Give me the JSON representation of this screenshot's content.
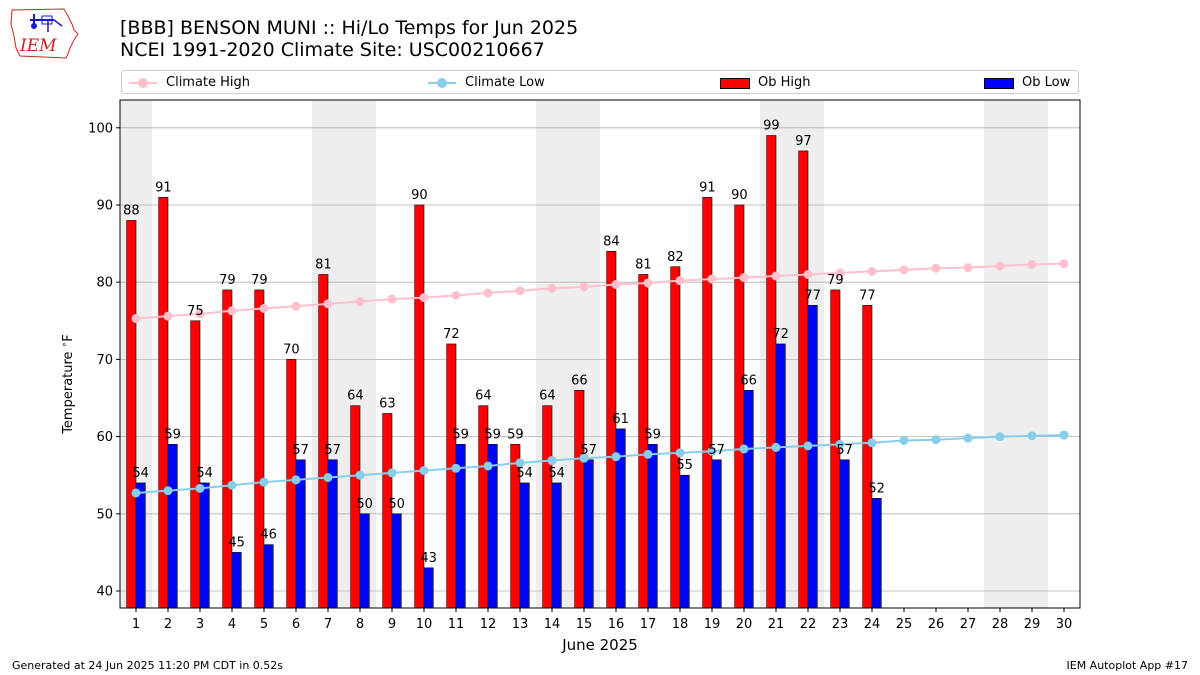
{
  "header": {
    "title_line1": "[BBB] BENSON MUNI :: Hi/Lo Temps for Jun 2025",
    "title_line2": "NCEI 1991-2020 Climate Site: USC00210667"
  },
  "logo": {
    "text": "IEM",
    "icon": "iowa-state-outline-logo"
  },
  "legend": {
    "placement": "top",
    "items": [
      {
        "label": "Climate High",
        "kind": "line",
        "color": "#ffc0cb"
      },
      {
        "label": "Climate Low",
        "kind": "line",
        "color": "#87ceeb"
      },
      {
        "label": "Ob High",
        "kind": "bar",
        "color": "#ff0000"
      },
      {
        "label": "Ob Low",
        "kind": "bar",
        "color": "#0000ff"
      }
    ]
  },
  "colors": {
    "ob_high": "#ff0000",
    "ob_low": "#0000ff",
    "climate_high": "#ffc0cb",
    "climate_low": "#87ceeb",
    "weekend_shading": "#eeeeee",
    "grid": "#b0b0b0"
  },
  "chart_data": {
    "type": "bar",
    "title": "[BBB] BENSON MUNI :: Hi/Lo Temps for Jun 2025",
    "subtitle": "NCEI 1991-2020 Climate Site: USC00210667",
    "xlabel": "June 2025",
    "ylabel": "Temperature $^\\circ$F",
    "ylim": [
      37.8,
      103.6
    ],
    "yticks": [
      40,
      50,
      60,
      70,
      80,
      90,
      100
    ],
    "grid": "y",
    "categories": [
      "1",
      "2",
      "3",
      "4",
      "5",
      "6",
      "7",
      "8",
      "9",
      "10",
      "11",
      "12",
      "13",
      "14",
      "15",
      "16",
      "17",
      "18",
      "19",
      "20",
      "21",
      "22",
      "23",
      "24",
      "25",
      "26",
      "27",
      "28",
      "29",
      "30"
    ],
    "weekend_spans": [
      [
        1,
        1
      ],
      [
        7,
        8
      ],
      [
        14,
        15
      ],
      [
        21,
        22
      ],
      [
        28,
        29
      ]
    ],
    "series": [
      {
        "name": "Ob High",
        "kind": "bar",
        "values": [
          88,
          91,
          75,
          79,
          79,
          70,
          81,
          64,
          63,
          90,
          72,
          64,
          59,
          64,
          66,
          84,
          81,
          82,
          91,
          90,
          99,
          97,
          79,
          77,
          null,
          null,
          null,
          null,
          null,
          null
        ]
      },
      {
        "name": "Ob Low",
        "kind": "bar",
        "values": [
          54,
          59,
          54,
          45,
          46,
          57,
          57,
          50,
          50,
          43,
          59,
          59,
          54,
          54,
          57,
          61,
          59,
          55,
          57,
          66,
          72,
          77,
          57,
          52,
          null,
          null,
          null,
          null,
          null,
          null
        ]
      },
      {
        "name": "Climate High",
        "kind": "line",
        "values": [
          75.3,
          75.6,
          75.9,
          76.3,
          76.6,
          76.9,
          77.2,
          77.5,
          77.8,
          78.0,
          78.3,
          78.6,
          78.9,
          79.2,
          79.4,
          79.7,
          79.9,
          80.2,
          80.4,
          80.6,
          80.8,
          81.0,
          81.2,
          81.4,
          81.6,
          81.8,
          81.9,
          82.1,
          82.3,
          82.4
        ]
      },
      {
        "name": "Climate Low",
        "kind": "line",
        "values": [
          52.7,
          53.0,
          53.3,
          53.7,
          54.1,
          54.4,
          54.7,
          55.0,
          55.3,
          55.6,
          55.9,
          56.2,
          56.6,
          56.9,
          57.2,
          57.4,
          57.7,
          57.9,
          58.1,
          58.4,
          58.6,
          58.8,
          59.0,
          59.2,
          59.5,
          59.6,
          59.8,
          60.0,
          60.1,
          60.2
        ]
      }
    ]
  },
  "footer": {
    "left": "Generated at 24 Jun 2025 11:20 PM CDT in 0.52s",
    "right": "IEM Autoplot App #17"
  }
}
